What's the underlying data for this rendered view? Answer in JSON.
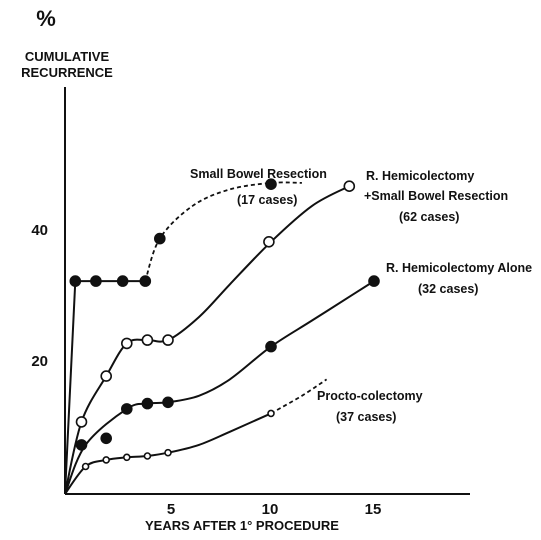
{
  "chart_data": {
    "type": "line",
    "ylabel_symbol": "%",
    "ylabel_lines": [
      "CUMULATIVE",
      "RECURRENCE"
    ],
    "xlabel": "YEARS AFTER 1° PROCEDURE",
    "x_ticks": [
      "5",
      "10",
      "15"
    ],
    "y_ticks": [
      "20",
      "40"
    ],
    "xlim": [
      0,
      18
    ],
    "ylim": [
      0,
      57
    ],
    "series": [
      {
        "name": "Small Bowel Resection",
        "cases": "(17 cases)",
        "marker": "filled",
        "color": "#111111",
        "solid": [
          [
            0,
            0
          ],
          [
            0.5,
            32.5
          ],
          [
            1.5,
            32.5
          ],
          [
            2.8,
            32.5
          ],
          [
            3.9,
            32.5
          ]
        ],
        "dashed": [
          [
            3.9,
            32.5
          ],
          [
            4.6,
            39
          ],
          [
            6.2,
            44
          ],
          [
            8,
            46.5
          ],
          [
            10,
            47.5
          ],
          [
            11.5,
            47.5
          ]
        ],
        "points": [
          [
            0.5,
            32.5
          ],
          [
            1.5,
            32.5
          ],
          [
            2.8,
            32.5
          ],
          [
            3.9,
            32.5
          ],
          [
            4.6,
            39
          ],
          [
            10,
            47.3
          ]
        ]
      },
      {
        "name": "R. Hemicolectomy + Small Bowel Resection",
        "name_lines": [
          "R. Hemicolectomy",
          "+Small Bowel Resection"
        ],
        "cases": "(62 cases)",
        "marker": "open",
        "color": "#111111",
        "solid": [
          [
            0,
            0
          ],
          [
            0.8,
            11
          ],
          [
            2,
            18
          ],
          [
            3,
            23
          ],
          [
            4,
            23.5
          ],
          [
            5,
            23.5
          ],
          [
            6.5,
            27
          ],
          [
            8,
            32
          ],
          [
            10,
            38.5
          ],
          [
            12,
            44
          ],
          [
            13.8,
            47
          ]
        ],
        "points": [
          [
            0.8,
            11
          ],
          [
            2,
            18
          ],
          [
            3,
            23
          ],
          [
            4,
            23.5
          ],
          [
            5,
            23.5
          ],
          [
            9.9,
            38.5
          ],
          [
            13.8,
            47
          ]
        ]
      },
      {
        "name": "R. Hemicolectomy Alone",
        "cases": "(32 cases)",
        "marker": "filled",
        "color": "#111111",
        "solid": [
          [
            0,
            0
          ],
          [
            1,
            7.5
          ],
          [
            3,
            13
          ],
          [
            4,
            13.8
          ],
          [
            5,
            14
          ],
          [
            6.5,
            15
          ],
          [
            8,
            17.5
          ],
          [
            10,
            22.5
          ],
          [
            12,
            26.5
          ],
          [
            14,
            30.5
          ],
          [
            15,
            32.5
          ]
        ],
        "points": [
          [
            0.8,
            7.5
          ],
          [
            2,
            8.5
          ],
          [
            3,
            13
          ],
          [
            4,
            13.8
          ],
          [
            5,
            14
          ],
          [
            10,
            22.5
          ],
          [
            15,
            32.5
          ]
        ]
      },
      {
        "name": "Procto-colectomy",
        "cases": "(37 cases)",
        "marker": "small-open",
        "color": "#111111",
        "solid": [
          [
            0,
            0
          ],
          [
            1,
            4.2
          ],
          [
            2,
            5.2
          ],
          [
            3,
            5.6
          ],
          [
            4,
            5.8
          ],
          [
            5,
            6.3
          ],
          [
            6.5,
            7.5
          ],
          [
            8,
            9.5
          ],
          [
            10,
            12.3
          ]
        ],
        "dashed": [
          [
            10,
            12.3
          ],
          [
            11.5,
            15
          ],
          [
            12.7,
            17.5
          ]
        ],
        "points": [
          [
            1,
            4.2
          ],
          [
            2,
            5.2
          ],
          [
            3,
            5.6
          ],
          [
            4,
            5.8
          ],
          [
            5,
            6.3
          ],
          [
            10,
            12.3
          ]
        ]
      }
    ]
  }
}
